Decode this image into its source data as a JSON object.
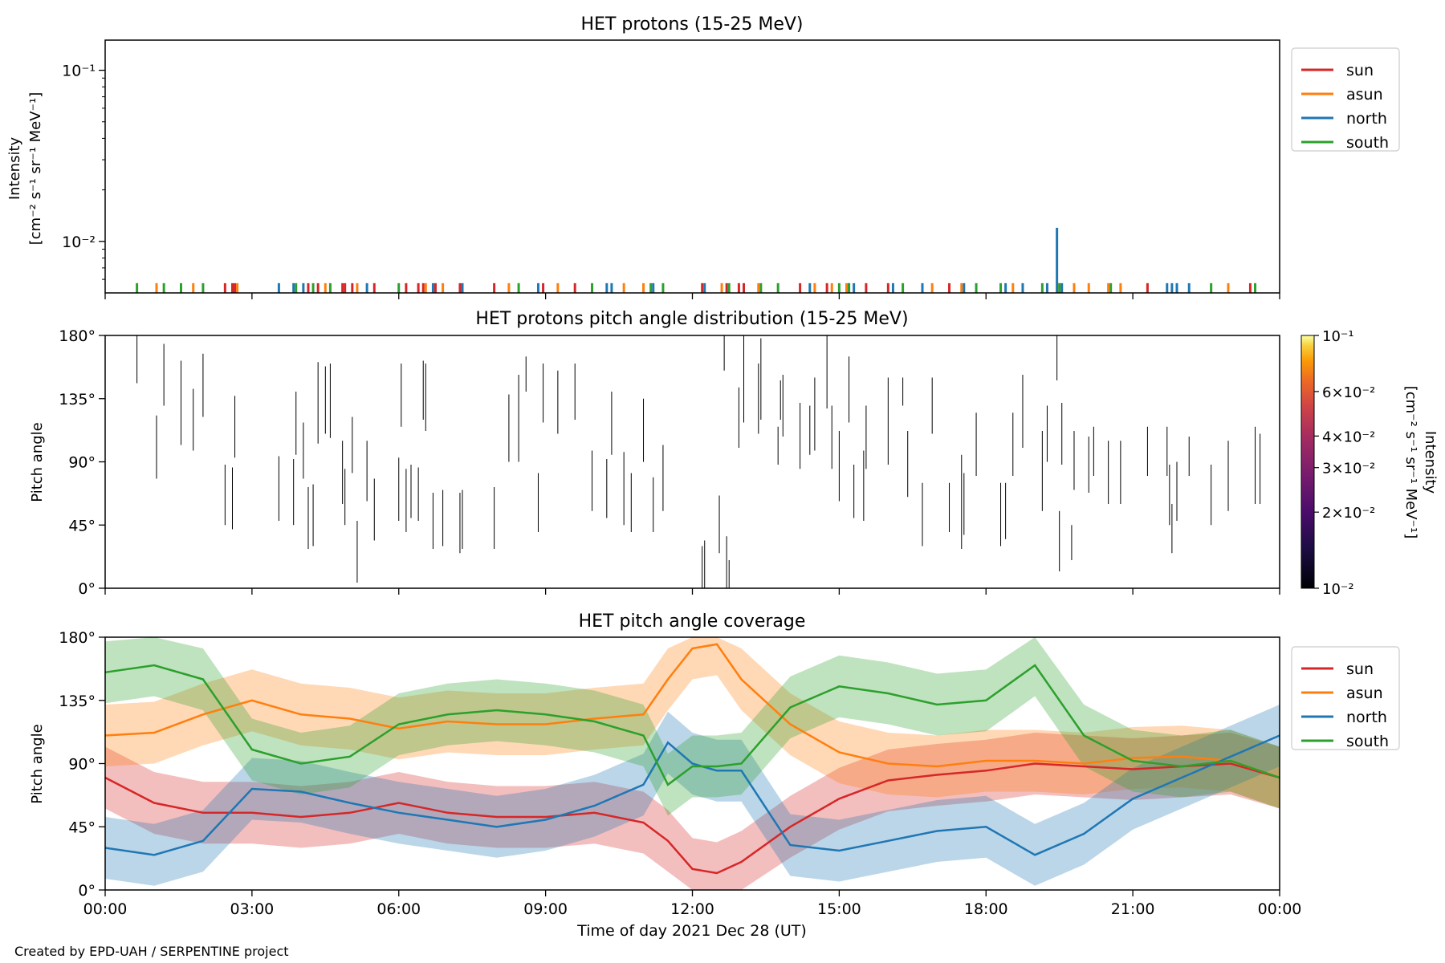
{
  "colors": {
    "sun": "#d62728",
    "asun": "#ff7f0e",
    "north": "#1f77b4",
    "south": "#2ca02c",
    "pad_line": "#000000"
  },
  "x_tick_labels": [
    "00:00",
    "03:00",
    "06:00",
    "09:00",
    "12:00",
    "15:00",
    "18:00",
    "21:00",
    "00:00"
  ],
  "xlabel": "Time of day 2021 Dec 28 (UT)",
  "credit": "Created by EPD-UAH / SERPENTINE project",
  "chart_data": [
    {
      "type": "line",
      "title": "HET protons (15-25 MeV)",
      "ylabel_line1": "Intensity",
      "ylabel_line2": "[cm⁻² s⁻¹ sr⁻¹ MeV⁻¹]",
      "yscale": "log",
      "ylim": [
        0.005,
        0.15
      ],
      "y_tick_labels": [
        "10⁻²",
        "10⁻¹"
      ],
      "y_ticks": [
        0.01,
        0.1
      ],
      "xlim_hours": [
        0,
        24
      ],
      "legend": {
        "placement": "outside-top-right",
        "entries": [
          "sun",
          "asun",
          "north",
          "south"
        ]
      },
      "series": [
        {
          "name": "sun",
          "color_key": "sun",
          "value": 0.0057,
          "x_hours": [
            2.45,
            2.6,
            2.65,
            4.15,
            4.35,
            4.85,
            4.9,
            5.05,
            5.5,
            6.15,
            6.4,
            6.5,
            6.75,
            7.25,
            7.95,
            8.95,
            9.6,
            12.2,
            12.7,
            12.95,
            13.05,
            14.2,
            14.75,
            15.55,
            16.0,
            17.25,
            21.3,
            23.4
          ]
        },
        {
          "name": "asun",
          "color_key": "asun",
          "value": 0.0057,
          "x_hours": [
            1.05,
            1.8,
            2.7,
            4.5,
            5.15,
            6.55,
            6.9,
            8.25,
            9.25,
            10.6,
            11.0,
            12.6,
            13.35,
            14.5,
            14.85,
            15.15,
            16.9,
            17.5,
            18.55,
            19.5,
            19.8,
            20.1,
            20.5,
            20.75,
            22.95
          ]
        },
        {
          "name": "north",
          "color_key": "north",
          "value": 0.0057,
          "x_hours": [
            3.55,
            3.85,
            4.05,
            5.35,
            6.7,
            7.3,
            8.85,
            10.25,
            10.35,
            11.2,
            12.25,
            14.4,
            15.2,
            15.3,
            16.1,
            16.7,
            17.55,
            18.4,
            18.75,
            19.25,
            19.55,
            21.7,
            21.8,
            21.9,
            22.15
          ]
        },
        {
          "name": "north",
          "color_key": "north",
          "value": 0.012,
          "x_hours": [
            19.45
          ]
        },
        {
          "name": "south",
          "color_key": "south",
          "value": 0.0057,
          "x_hours": [
            0.65,
            1.2,
            1.55,
            2.0,
            3.9,
            4.25,
            4.6,
            6.0,
            8.45,
            9.95,
            11.15,
            11.4,
            12.75,
            13.4,
            13.75,
            15.0,
            15.2,
            16.3,
            17.8,
            18.3,
            19.15,
            19.5,
            20.55,
            22.6,
            23.5
          ]
        }
      ]
    },
    {
      "type": "heatmap",
      "title": "HET protons pitch angle distribution (15-25 MeV)",
      "ylabel": "Pitch angle",
      "ylim": [
        0,
        180
      ],
      "y_tick_labels": [
        "0°",
        "45°",
        "90°",
        "135°",
        "180°"
      ],
      "y_ticks": [
        0,
        45,
        90,
        135,
        180
      ],
      "xlim_hours": [
        0,
        24
      ],
      "colorbar": {
        "label_line1": "Intensity",
        "label_line2": "[cm⁻² s⁻¹ sr⁻¹ MeV⁻¹]",
        "scale": "log",
        "range": [
          0.01,
          0.1
        ],
        "tick_labels": [
          "10⁻²",
          "2×10⁻²",
          "3×10⁻²",
          "4×10⁻²",
          "6×10⁻²",
          "10⁻¹"
        ],
        "ticks": [
          0.01,
          0.02,
          0.03,
          0.04,
          0.06,
          0.1
        ],
        "colormap": "inferno"
      },
      "segments_deg": [
        [
          0.65,
          146,
          180
        ],
        [
          1.05,
          78,
          123
        ],
        [
          1.2,
          130,
          174
        ],
        [
          1.55,
          102,
          162
        ],
        [
          1.8,
          98,
          142
        ],
        [
          2.0,
          122,
          167
        ],
        [
          2.45,
          45,
          88
        ],
        [
          2.6,
          42,
          86
        ],
        [
          2.65,
          93,
          137
        ],
        [
          3.55,
          48,
          94
        ],
        [
          3.85,
          45,
          92
        ],
        [
          3.9,
          95,
          140
        ],
        [
          4.05,
          78,
          118
        ],
        [
          4.15,
          28,
          72
        ],
        [
          4.25,
          30,
          74
        ],
        [
          4.35,
          103,
          161
        ],
        [
          4.5,
          110,
          158
        ],
        [
          4.6,
          107,
          160
        ],
        [
          4.85,
          60,
          105
        ],
        [
          4.9,
          45,
          85
        ],
        [
          5.05,
          82,
          122
        ],
        [
          5.15,
          4,
          48
        ],
        [
          5.35,
          62,
          105
        ],
        [
          5.5,
          34,
          78
        ],
        [
          6.0,
          48,
          93
        ],
        [
          6.05,
          115,
          160
        ],
        [
          6.15,
          40,
          85
        ],
        [
          6.25,
          50,
          88
        ],
        [
          6.4,
          48,
          86
        ],
        [
          6.5,
          120,
          162
        ],
        [
          6.55,
          112,
          160
        ],
        [
          6.7,
          28,
          68
        ],
        [
          6.9,
          30,
          70
        ],
        [
          7.25,
          25,
          68
        ],
        [
          7.3,
          28,
          70
        ],
        [
          7.95,
          28,
          72
        ],
        [
          8.25,
          90,
          138
        ],
        [
          8.45,
          90,
          152
        ],
        [
          8.6,
          140,
          165
        ],
        [
          8.85,
          40,
          82
        ],
        [
          8.95,
          118,
          160
        ],
        [
          9.25,
          110,
          155
        ],
        [
          9.6,
          120,
          160
        ],
        [
          9.95,
          55,
          98
        ],
        [
          10.25,
          50,
          92
        ],
        [
          10.35,
          95,
          140
        ],
        [
          10.6,
          45,
          97
        ],
        [
          10.75,
          40,
          82
        ],
        [
          11.0,
          90,
          135
        ],
        [
          11.2,
          40,
          79
        ],
        [
          11.4,
          55,
          102
        ],
        [
          12.2,
          0,
          30
        ],
        [
          12.25,
          0,
          34
        ],
        [
          12.55,
          25,
          66
        ],
        [
          12.65,
          155,
          180
        ],
        [
          12.7,
          0,
          37
        ],
        [
          12.75,
          0,
          20
        ],
        [
          12.95,
          100,
          143
        ],
        [
          13.05,
          118,
          180
        ],
        [
          13.35,
          110,
          160
        ],
        [
          13.4,
          120,
          178
        ],
        [
          13.75,
          88,
          115
        ],
        [
          13.8,
          120,
          148
        ],
        [
          13.85,
          108,
          152
        ],
        [
          14.2,
          85,
          132
        ],
        [
          14.4,
          95,
          130
        ],
        [
          14.5,
          98,
          150
        ],
        [
          14.75,
          128,
          180
        ],
        [
          14.85,
          85,
          130
        ],
        [
          15.0,
          62,
          112
        ],
        [
          15.2,
          118,
          165
        ],
        [
          15.3,
          50,
          88
        ],
        [
          15.5,
          48,
          98
        ],
        [
          15.55,
          85,
          130
        ],
        [
          16.0,
          88,
          150
        ],
        [
          16.3,
          130,
          150
        ],
        [
          16.4,
          65,
          112
        ],
        [
          16.7,
          30,
          75
        ],
        [
          16.9,
          110,
          150
        ],
        [
          17.25,
          40,
          75
        ],
        [
          17.5,
          28,
          95
        ],
        [
          17.55,
          38,
          82
        ],
        [
          17.8,
          80,
          125
        ],
        [
          18.3,
          30,
          75
        ],
        [
          18.4,
          35,
          75
        ],
        [
          18.55,
          80,
          125
        ],
        [
          18.75,
          100,
          152
        ],
        [
          19.15,
          55,
          112
        ],
        [
          19.25,
          90,
          130
        ],
        [
          19.45,
          148,
          180
        ],
        [
          19.5,
          12,
          55
        ],
        [
          19.55,
          88,
          132
        ],
        [
          19.75,
          20,
          45
        ],
        [
          19.8,
          70,
          112
        ],
        [
          20.1,
          68,
          108
        ],
        [
          20.2,
          80,
          115
        ],
        [
          20.5,
          60,
          105
        ],
        [
          20.75,
          60,
          105
        ],
        [
          21.3,
          80,
          115
        ],
        [
          21.7,
          80,
          115
        ],
        [
          21.75,
          45,
          88
        ],
        [
          21.8,
          25,
          60
        ],
        [
          21.9,
          48,
          90
        ],
        [
          22.15,
          80,
          108
        ],
        [
          22.6,
          45,
          88
        ],
        [
          22.95,
          55,
          105
        ],
        [
          23.5,
          60,
          115
        ],
        [
          23.6,
          60,
          110
        ]
      ]
    },
    {
      "type": "area",
      "title": "HET pitch angle coverage",
      "ylabel": "Pitch angle",
      "ylim": [
        0,
        180
      ],
      "y_tick_labels": [
        "0°",
        "45°",
        "90°",
        "135°",
        "180°"
      ],
      "y_ticks": [
        0,
        45,
        90,
        135,
        180
      ],
      "xlim_hours": [
        0,
        24
      ],
      "legend": {
        "placement": "outside-top-right",
        "entries": [
          "sun",
          "asun",
          "north",
          "south"
        ]
      },
      "band_halfwidth_deg": 22,
      "series": [
        {
          "name": "sun",
          "color_key": "sun",
          "x_hours": [
            0,
            1,
            2,
            3,
            4,
            5,
            6,
            7,
            8,
            9,
            10,
            11,
            11.5,
            12,
            12.5,
            13,
            14,
            15,
            16,
            17,
            18,
            19,
            20,
            21,
            22,
            23,
            24
          ],
          "y": [
            80,
            62,
            55,
            55,
            52,
            55,
            62,
            55,
            52,
            52,
            55,
            48,
            35,
            15,
            12,
            20,
            45,
            65,
            78,
            82,
            85,
            90,
            88,
            86,
            88,
            90,
            80
          ]
        },
        {
          "name": "asun",
          "color_key": "asun",
          "x_hours": [
            0,
            1,
            2,
            3,
            4,
            5,
            6,
            7,
            8,
            9,
            10,
            11,
            11.5,
            12,
            12.5,
            13,
            14,
            15,
            16,
            17,
            18,
            19,
            20,
            21,
            22,
            23,
            24
          ],
          "y": [
            110,
            112,
            125,
            135,
            125,
            122,
            115,
            120,
            118,
            118,
            122,
            125,
            150,
            172,
            175,
            150,
            118,
            98,
            90,
            88,
            92,
            92,
            90,
            94,
            95,
            92,
            80
          ]
        },
        {
          "name": "north",
          "color_key": "north",
          "x_hours": [
            0,
            1,
            2,
            3,
            4,
            5,
            6,
            7,
            8,
            9,
            10,
            11,
            11.5,
            12,
            12.5,
            13,
            14,
            15,
            16,
            17,
            18,
            19,
            20,
            21,
            22,
            23,
            24
          ],
          "y": [
            30,
            25,
            35,
            72,
            70,
            62,
            55,
            50,
            45,
            50,
            60,
            75,
            105,
            90,
            85,
            85,
            32,
            28,
            35,
            42,
            45,
            25,
            40,
            65,
            80,
            95,
            110
          ]
        },
        {
          "name": "south",
          "color_key": "south",
          "x_hours": [
            0,
            1,
            2,
            3,
            4,
            5,
            6,
            7,
            8,
            9,
            10,
            11,
            11.5,
            12,
            12.5,
            13,
            14,
            15,
            16,
            17,
            18,
            19,
            20,
            21,
            22,
            23,
            24
          ],
          "y": [
            155,
            160,
            150,
            100,
            90,
            95,
            118,
            125,
            128,
            125,
            120,
            110,
            75,
            88,
            88,
            90,
            130,
            145,
            140,
            132,
            135,
            160,
            110,
            92,
            88,
            92,
            80
          ]
        }
      ]
    }
  ]
}
